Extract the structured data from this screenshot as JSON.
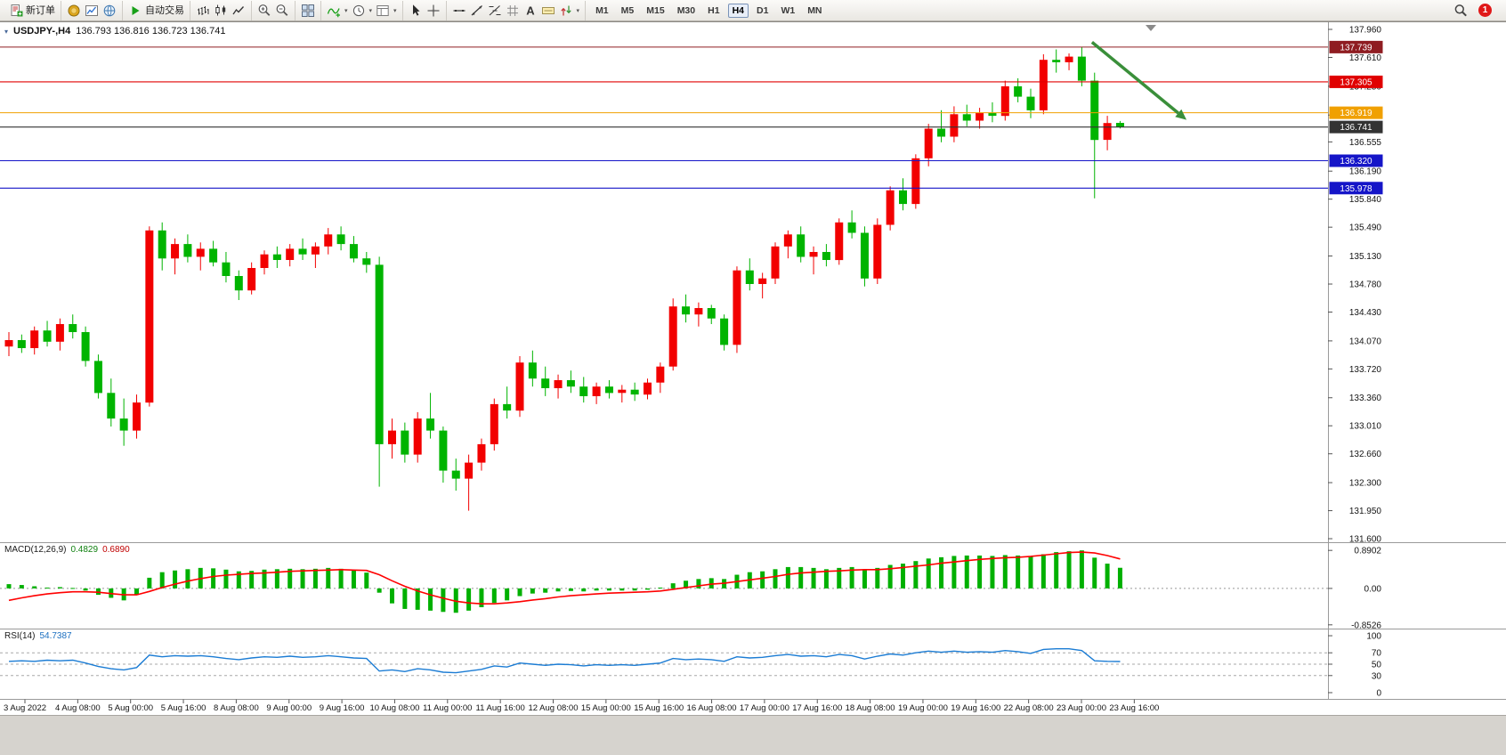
{
  "toolbar": {
    "active_timeframe": "H4",
    "notification_count": "1",
    "groups": [
      {
        "name": "order",
        "items": [
          {
            "name": "new-order-button",
            "icon": "doc-plus",
            "label": "新订单"
          }
        ]
      },
      {
        "name": "windows",
        "items": [
          {
            "name": "metaquotes-button",
            "icon": "gold"
          },
          {
            "name": "new-chart-button",
            "icon": "chart-blue"
          },
          {
            "name": "community-button",
            "icon": "globe"
          }
        ]
      },
      {
        "name": "autotrade",
        "items": [
          {
            "name": "auto-trading-button",
            "icon": "play-green",
            "label": "自动交易"
          }
        ]
      },
      {
        "name": "chart-modes",
        "items": [
          {
            "name": "bar-chart-button",
            "icon": "bars"
          },
          {
            "name": "candlestick-chart-button",
            "icon": "candles"
          },
          {
            "name": "line-chart-button",
            "icon": "polyline"
          }
        ]
      },
      {
        "name": "zoom",
        "items": [
          {
            "name": "zoom-in-button",
            "icon": "zoom-plus"
          },
          {
            "name": "zoom-out-button",
            "icon": "zoom-minus"
          }
        ]
      },
      {
        "name": "arrange",
        "items": [
          {
            "name": "tile-windows-button",
            "icon": "tiles"
          }
        ]
      },
      {
        "name": "chart-tools",
        "items": [
          {
            "name": "indicators-button",
            "icon": "indicator",
            "dropdown": true
          },
          {
            "name": "periods-button",
            "icon": "clock",
            "dropdown": true
          },
          {
            "name": "templates-button",
            "icon": "template",
            "dropdown": true
          }
        ]
      },
      {
        "name": "pointer",
        "items": [
          {
            "name": "cursor-button",
            "icon": "cursor"
          },
          {
            "name": "crosshair-button",
            "icon": "crosshair"
          }
        ]
      },
      {
        "name": "draw",
        "items": [
          {
            "name": "horizontal-line-button",
            "icon": "hline"
          },
          {
            "name": "trendline-button",
            "icon": "tline"
          },
          {
            "name": "fibonacci-button",
            "icon": "fibo"
          },
          {
            "name": "grid-button",
            "icon": "grid"
          },
          {
            "name": "text-button",
            "icon": "textA"
          },
          {
            "name": "label-button",
            "icon": "label"
          },
          {
            "name": "arrow-tools-button",
            "icon": "arrows",
            "dropdown": true
          }
        ]
      },
      {
        "name": "timeframes",
        "items": [
          {
            "name": "tf-m1",
            "label": "M1",
            "tf": true
          },
          {
            "name": "tf-m5",
            "label": "M5",
            "tf": true
          },
          {
            "name": "tf-m15",
            "label": "M15",
            "tf": true
          },
          {
            "name": "tf-m30",
            "label": "M30",
            "tf": true
          },
          {
            "name": "tf-h1",
            "label": "H1",
            "tf": true
          },
          {
            "name": "tf-h4",
            "label": "H4",
            "tf": true
          },
          {
            "name": "tf-d1",
            "label": "D1",
            "tf": true
          },
          {
            "name": "tf-w1",
            "label": "W1",
            "tf": true
          },
          {
            "name": "tf-mn",
            "label": "MN",
            "tf": true
          }
        ]
      }
    ],
    "right_items": [
      {
        "name": "search-button",
        "icon": "magnifier"
      },
      {
        "name": "notifications-button",
        "badge": true
      }
    ]
  },
  "chart": {
    "symbol_period": "USDJPY-,H4",
    "ohlc": "136.793 136.816 136.723 136.741"
  },
  "indicators": {
    "macd": {
      "name": "MACD(12,26,9)",
      "value_main": "0.4829",
      "value_signal": "0.6890"
    },
    "rsi": {
      "name": "RSI(14)",
      "value": "54.7387"
    }
  },
  "chart_data": {
    "type": "candlestick",
    "symbol": "USDJPY-",
    "timeframe": "H4",
    "title": "USDJPY-,H4",
    "current_ohlc": {
      "open": 136.793,
      "high": 136.816,
      "low": 136.723,
      "close": 136.741
    },
    "up_color": "#f20000",
    "down_color": "#00b400",
    "grid": false,
    "ylim_main": [
      131.556,
      138.049
    ],
    "price_axis_labels": [
      "137.960",
      "137.610",
      "137.250",
      "136.890",
      "136.555",
      "136.190",
      "135.840",
      "135.490",
      "135.130",
      "134.780",
      "134.430",
      "134.070",
      "133.720",
      "133.360",
      "133.010",
      "132.660",
      "132.300",
      "131.950",
      "131.600"
    ],
    "x_labels": [
      "3 Aug 2022",
      "4 Aug 08:00",
      "5 Aug 00:00",
      "5 Aug 16:00",
      "8 Aug 08:00",
      "9 Aug 00:00",
      "9 Aug 16:00",
      "10 Aug 08:00",
      "11 Aug 00:00",
      "11 Aug 16:00",
      "12 Aug 08:00",
      "15 Aug 00:00",
      "15 Aug 16:00",
      "16 Aug 08:00",
      "17 Aug 00:00",
      "17 Aug 16:00",
      "18 Aug 08:00",
      "19 Aug 00:00",
      "19 Aug 16:00",
      "22 Aug 08:00",
      "23 Aug 00:00",
      "23 Aug 16:00"
    ],
    "candles": [
      [
        134.0,
        134.18,
        133.88,
        134.08
      ],
      [
        134.08,
        134.15,
        133.92,
        133.98
      ],
      [
        133.98,
        134.25,
        133.9,
        134.2
      ],
      [
        134.2,
        134.32,
        134.0,
        134.06
      ],
      [
        134.06,
        134.35,
        133.95,
        134.28
      ],
      [
        134.28,
        134.4,
        134.1,
        134.18
      ],
      [
        134.18,
        134.25,
        133.75,
        133.82
      ],
      [
        133.82,
        133.9,
        133.35,
        133.42
      ],
      [
        133.42,
        133.6,
        133.0,
        133.1
      ],
      [
        133.1,
        133.35,
        132.76,
        132.95
      ],
      [
        132.95,
        133.4,
        132.85,
        133.3
      ],
      [
        133.3,
        135.5,
        133.25,
        135.45
      ],
      [
        135.45,
        135.55,
        134.95,
        135.1
      ],
      [
        135.1,
        135.35,
        134.9,
        135.28
      ],
      [
        135.28,
        135.4,
        135.05,
        135.12
      ],
      [
        135.12,
        135.3,
        134.95,
        135.22
      ],
      [
        135.22,
        135.32,
        135.0,
        135.05
      ],
      [
        135.05,
        135.18,
        134.8,
        134.88
      ],
      [
        134.88,
        134.95,
        134.58,
        134.7
      ],
      [
        134.7,
        135.05,
        134.65,
        134.98
      ],
      [
        134.98,
        135.2,
        134.9,
        135.15
      ],
      [
        135.15,
        135.25,
        134.98,
        135.08
      ],
      [
        135.08,
        135.28,
        135.0,
        135.22
      ],
      [
        135.22,
        135.35,
        135.08,
        135.15
      ],
      [
        135.15,
        135.3,
        134.98,
        135.25
      ],
      [
        135.25,
        135.48,
        135.15,
        135.4
      ],
      [
        135.4,
        135.5,
        135.2,
        135.28
      ],
      [
        135.28,
        135.38,
        135.05,
        135.1
      ],
      [
        135.1,
        135.18,
        134.92,
        135.02
      ],
      [
        135.02,
        135.12,
        132.25,
        132.78
      ],
      [
        132.78,
        133.1,
        132.6,
        132.95
      ],
      [
        132.95,
        133.05,
        132.55,
        132.65
      ],
      [
        132.65,
        133.18,
        132.55,
        133.1
      ],
      [
        133.1,
        133.42,
        132.85,
        132.95
      ],
      [
        132.95,
        133.0,
        132.3,
        132.45
      ],
      [
        132.45,
        132.6,
        132.2,
        132.35
      ],
      [
        132.35,
        132.65,
        131.95,
        132.55
      ],
      [
        132.55,
        132.85,
        132.45,
        132.78
      ],
      [
        132.78,
        133.35,
        132.7,
        133.28
      ],
      [
        133.28,
        133.5,
        133.1,
        133.2
      ],
      [
        133.2,
        133.88,
        133.12,
        133.8
      ],
      [
        133.8,
        133.95,
        133.5,
        133.6
      ],
      [
        133.6,
        133.75,
        133.38,
        133.48
      ],
      [
        133.48,
        133.65,
        133.35,
        133.58
      ],
      [
        133.58,
        133.7,
        133.42,
        133.5
      ],
      [
        133.5,
        133.62,
        133.3,
        133.38
      ],
      [
        133.38,
        133.55,
        133.28,
        133.5
      ],
      [
        133.5,
        133.58,
        133.35,
        133.42
      ],
      [
        133.42,
        133.52,
        133.3,
        133.46
      ],
      [
        133.46,
        133.55,
        133.32,
        133.4
      ],
      [
        133.4,
        133.6,
        133.34,
        133.55
      ],
      [
        133.55,
        133.8,
        133.42,
        133.75
      ],
      [
        133.75,
        134.6,
        133.7,
        134.5
      ],
      [
        134.5,
        134.65,
        134.3,
        134.4
      ],
      [
        134.4,
        134.55,
        134.25,
        134.48
      ],
      [
        134.48,
        134.52,
        134.28,
        134.35
      ],
      [
        134.35,
        134.4,
        133.95,
        134.02
      ],
      [
        134.02,
        135.0,
        133.92,
        134.95
      ],
      [
        134.95,
        135.1,
        134.7,
        134.78
      ],
      [
        134.78,
        134.92,
        134.6,
        134.85
      ],
      [
        134.85,
        135.3,
        134.78,
        135.25
      ],
      [
        135.25,
        135.45,
        135.1,
        135.4
      ],
      [
        135.4,
        135.5,
        135.05,
        135.12
      ],
      [
        135.12,
        135.25,
        134.9,
        135.18
      ],
      [
        135.18,
        135.28,
        135.0,
        135.08
      ],
      [
        135.08,
        135.6,
        135.02,
        135.55
      ],
      [
        135.55,
        135.7,
        135.35,
        135.42
      ],
      [
        135.42,
        135.5,
        134.75,
        134.85
      ],
      [
        134.85,
        135.6,
        134.78,
        135.52
      ],
      [
        135.52,
        136.0,
        135.45,
        135.95
      ],
      [
        135.95,
        136.1,
        135.7,
        135.78
      ],
      [
        135.78,
        136.4,
        135.72,
        136.35
      ],
      [
        136.35,
        136.78,
        136.25,
        136.72
      ],
      [
        136.72,
        136.95,
        136.55,
        136.62
      ],
      [
        136.62,
        137.0,
        136.55,
        136.9
      ],
      [
        136.9,
        137.02,
        136.75,
        136.82
      ],
      [
        136.82,
        136.98,
        136.72,
        136.92
      ],
      [
        136.92,
        137.05,
        136.8,
        136.88
      ],
      [
        136.88,
        137.32,
        136.82,
        137.25
      ],
      [
        137.25,
        137.35,
        137.05,
        137.12
      ],
      [
        137.12,
        137.22,
        136.85,
        136.95
      ],
      [
        136.95,
        137.65,
        136.9,
        137.58
      ],
      [
        137.58,
        137.71,
        137.42,
        137.55
      ],
      [
        137.55,
        137.66,
        137.45,
        137.62
      ],
      [
        137.62,
        137.74,
        137.25,
        137.32
      ],
      [
        137.32,
        137.42,
        135.85,
        136.58
      ],
      [
        136.58,
        136.88,
        136.45,
        136.79
      ],
      [
        136.793,
        136.816,
        136.723,
        136.741
      ]
    ],
    "hlines": [
      {
        "price": 137.739,
        "label": "137.739",
        "color": "#8f1d22"
      },
      {
        "price": 137.305,
        "label": "137.305",
        "color": "#e00000"
      },
      {
        "price": 136.919,
        "label": "136.919",
        "color": "#f0a000"
      },
      {
        "price": 136.741,
        "label": "136.741",
        "color": "#333333",
        "role": "current-price"
      },
      {
        "price": 136.32,
        "label": "136.320",
        "color": "#1515c8"
      },
      {
        "price": 135.978,
        "label": "135.978",
        "color": "#1515c8"
      }
    ],
    "trend_arrow": {
      "from_index": 84.8,
      "from_price": 137.8,
      "to_index": 92.2,
      "to_price": 136.83,
      "color": "#3a8f3a",
      "width": 3.5
    },
    "macd": {
      "params": "12,26,9",
      "histogram_color": "#00b000",
      "signal_color": "#ff0000",
      "ylim": [
        -0.94,
        1.04
      ],
      "axis": [
        {
          "v": 0.8902,
          "label": "0.8902"
        },
        {
          "v": 0,
          "label": "0.00"
        },
        {
          "v": -0.8526,
          "label": "-0.8526"
        }
      ],
      "histogram": [
        0.1,
        0.08,
        0.05,
        0.02,
        0.03,
        0.01,
        -0.05,
        -0.15,
        -0.22,
        -0.28,
        -0.15,
        0.25,
        0.38,
        0.42,
        0.45,
        0.48,
        0.47,
        0.44,
        0.4,
        0.41,
        0.44,
        0.45,
        0.46,
        0.45,
        0.46,
        0.48,
        0.46,
        0.42,
        0.37,
        -0.1,
        -0.35,
        -0.48,
        -0.5,
        -0.52,
        -0.55,
        -0.57,
        -0.52,
        -0.44,
        -0.34,
        -0.28,
        -0.18,
        -0.12,
        -0.1,
        -0.07,
        -0.06,
        -0.07,
        -0.05,
        -0.05,
        -0.05,
        -0.05,
        -0.03,
        0.02,
        0.12,
        0.18,
        0.22,
        0.24,
        0.22,
        0.32,
        0.38,
        0.4,
        0.45,
        0.5,
        0.5,
        0.48,
        0.45,
        0.48,
        0.5,
        0.45,
        0.48,
        0.55,
        0.58,
        0.64,
        0.7,
        0.73,
        0.76,
        0.77,
        0.77,
        0.76,
        0.78,
        0.77,
        0.74,
        0.8,
        0.85,
        0.87,
        0.89,
        0.72,
        0.58,
        0.4829
      ],
      "signal": [
        -0.28,
        -0.22,
        -0.17,
        -0.13,
        -0.1,
        -0.08,
        -0.08,
        -0.09,
        -0.12,
        -0.15,
        -0.15,
        -0.07,
        0.02,
        0.1,
        0.17,
        0.23,
        0.28,
        0.31,
        0.33,
        0.35,
        0.36,
        0.38,
        0.4,
        0.41,
        0.42,
        0.43,
        0.44,
        0.43,
        0.42,
        0.32,
        0.18,
        0.05,
        -0.06,
        -0.15,
        -0.23,
        -0.3,
        -0.34,
        -0.36,
        -0.36,
        -0.34,
        -0.31,
        -0.27,
        -0.24,
        -0.2,
        -0.17,
        -0.15,
        -0.13,
        -0.11,
        -0.1,
        -0.09,
        -0.08,
        -0.06,
        -0.02,
        0.02,
        0.06,
        0.1,
        0.12,
        0.16,
        0.2,
        0.24,
        0.28,
        0.33,
        0.36,
        0.38,
        0.4,
        0.41,
        0.43,
        0.44,
        0.44,
        0.46,
        0.49,
        0.52,
        0.55,
        0.59,
        0.62,
        0.65,
        0.68,
        0.7,
        0.72,
        0.73,
        0.75,
        0.78,
        0.81,
        0.84,
        0.85,
        0.83,
        0.77,
        0.689
      ]
    },
    "rsi": {
      "period": 14,
      "color": "#1b7cd4",
      "levels": [
        70,
        50,
        30
      ],
      "ylim": [
        -11,
        111
      ],
      "axis": [
        {
          "v": 100,
          "label": "100"
        },
        {
          "v": 70,
          "label": "70"
        },
        {
          "v": 50,
          "label": "50"
        },
        {
          "v": 30,
          "label": "30"
        },
        {
          "v": 0,
          "label": "0"
        }
      ],
      "values": [
        55,
        56,
        55,
        57,
        56,
        57,
        52,
        46,
        42,
        40,
        44,
        66,
        63,
        65,
        64,
        65,
        63,
        60,
        58,
        61,
        63,
        62,
        64,
        62,
        63,
        65,
        63,
        61,
        60,
        38,
        40,
        37,
        42,
        40,
        36,
        35,
        38,
        41,
        47,
        45,
        52,
        50,
        48,
        50,
        49,
        47,
        49,
        48,
        49,
        48,
        50,
        52,
        60,
        58,
        59,
        58,
        55,
        63,
        61,
        62,
        65,
        67,
        64,
        65,
        63,
        67,
        65,
        59,
        64,
        68,
        66,
        70,
        73,
        71,
        73,
        71,
        72,
        71,
        74,
        72,
        69,
        76,
        77,
        77,
        74,
        56,
        55,
        54.74
      ]
    }
  }
}
